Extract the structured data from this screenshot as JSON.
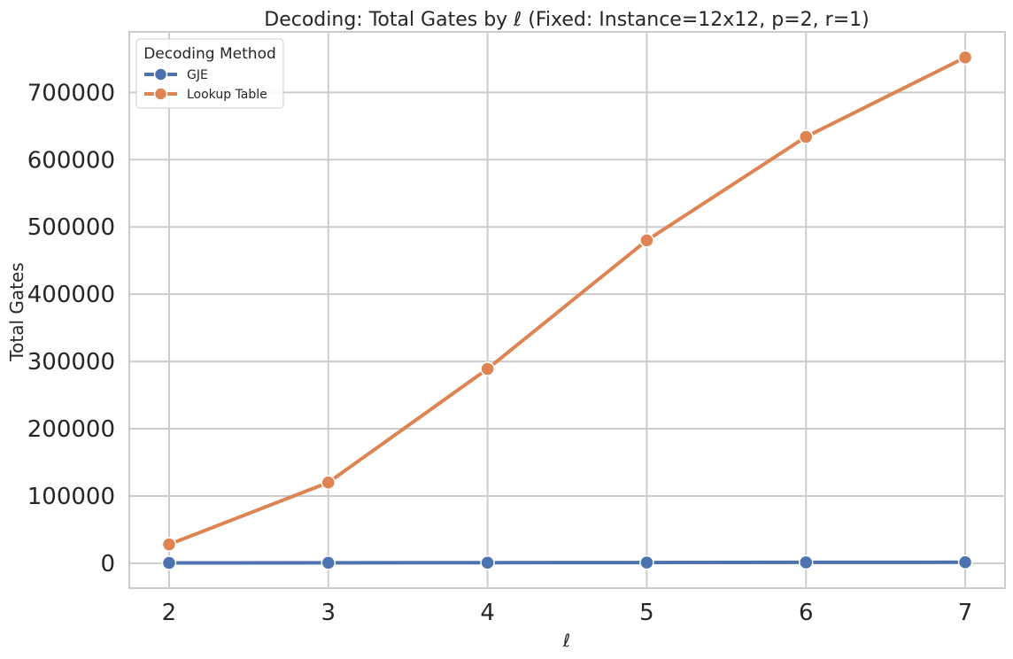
{
  "chart_data": {
    "type": "line",
    "title": "Decoding: Total Gates by ℓ (Fixed: Instance=12x12, p=2, r=1)",
    "xlabel": "ℓ",
    "ylabel": "Total Gates",
    "x": [
      2,
      3,
      4,
      5,
      6,
      7
    ],
    "x_tick_labels": [
      "2",
      "3",
      "4",
      "5",
      "6",
      "7"
    ],
    "y_ticks": [
      0,
      100000,
      200000,
      300000,
      400000,
      500000,
      600000,
      700000
    ],
    "y_tick_labels": [
      "0",
      "100000",
      "200000",
      "300000",
      "400000",
      "500000",
      "600000",
      "700000"
    ],
    "xlim": [
      1.75,
      7.25
    ],
    "ylim": [
      -37000,
      790000
    ],
    "grid": true,
    "legend": {
      "title": "Decoding Method",
      "placement": "top-left"
    },
    "series": [
      {
        "name": "GJE",
        "color": "#4C72B0",
        "values": [
          500,
          700,
          900,
          1100,
          1300,
          1500
        ]
      },
      {
        "name": "Lookup Table",
        "color": "#DD8452",
        "values": [
          28000,
          120000,
          289000,
          480000,
          634000,
          752000
        ]
      }
    ]
  }
}
